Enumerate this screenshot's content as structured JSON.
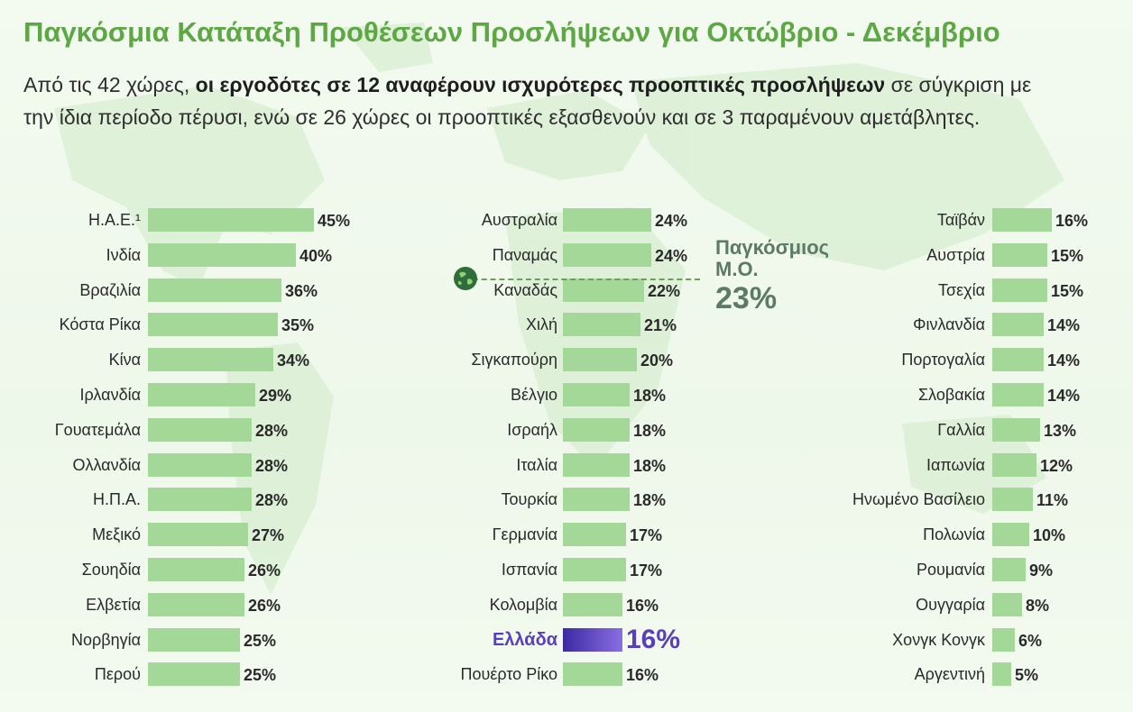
{
  "title": "Παγκόσμια Κατάταξη Προθέσεων Προσλήψεων για Οκτώβριο - Δεκέμβριο",
  "subtitle": {
    "part1": "Από τις 42 χώρες, ",
    "bold": "οι εργοδότες σε 12 αναφέρουν ισχυρότερες προοπτικές προσλήψεων",
    "part2": " σε σύγκριση με την ίδια περίοδο πέρυσι, ενώ σε 26 χώρες οι προοπτικές εξασθενούν και σε 3 παραμένουν αμετάβλητες."
  },
  "global_average": {
    "label": "Παγκόσμιος Μ.Ο.",
    "value": 23,
    "value_text": "23%"
  },
  "colors": {
    "title": "#5da845",
    "bar": "#a4d898",
    "highlight_start": "#3c2aa3",
    "highlight_end": "#8a6ee4",
    "highlight_text": "#5a3fbd",
    "average_text": "#5d7a66"
  },
  "chart_data": {
    "type": "bar",
    "orientation": "horizontal",
    "unit": "%",
    "highlight": "Ελλάδα",
    "average": 23,
    "columns": [
      [
        {
          "country": "Η.Α.Ε.¹",
          "value": 45
        },
        {
          "country": "Ινδία",
          "value": 40
        },
        {
          "country": "Βραζιλία",
          "value": 36
        },
        {
          "country": "Κόστα Ρίκα",
          "value": 35
        },
        {
          "country": "Κίνα",
          "value": 34
        },
        {
          "country": "Ιρλανδία",
          "value": 29
        },
        {
          "country": "Γουατεμάλα",
          "value": 28
        },
        {
          "country": "Ολλανδία",
          "value": 28
        },
        {
          "country": "Η.Π.Α.",
          "value": 28
        },
        {
          "country": "Μεξικό",
          "value": 27
        },
        {
          "country": "Σουηδία",
          "value": 26
        },
        {
          "country": "Ελβετία",
          "value": 26
        },
        {
          "country": "Νορβηγία",
          "value": 25
        },
        {
          "country": "Περού",
          "value": 25
        }
      ],
      [
        {
          "country": "Αυστραλία",
          "value": 24
        },
        {
          "country": "Παναμάς",
          "value": 24
        },
        {
          "country": "Καναδάς",
          "value": 22
        },
        {
          "country": "Χιλή",
          "value": 21
        },
        {
          "country": "Σιγκαπούρη",
          "value": 20
        },
        {
          "country": "Βέλγιο",
          "value": 18
        },
        {
          "country": "Ισραήλ",
          "value": 18
        },
        {
          "country": "Ιταλία",
          "value": 18
        },
        {
          "country": "Τουρκία",
          "value": 18
        },
        {
          "country": "Γερμανία",
          "value": 17
        },
        {
          "country": "Ισπανία",
          "value": 17
        },
        {
          "country": "Κολομβία",
          "value": 16
        },
        {
          "country": "Ελλάδα",
          "value": 16
        },
        {
          "country": "Πουέρτο Ρίκο",
          "value": 16
        }
      ],
      [
        {
          "country": "Ταϊβάν",
          "value": 16
        },
        {
          "country": "Αυστρία",
          "value": 15
        },
        {
          "country": "Τσεχία",
          "value": 15
        },
        {
          "country": "Φινλανδία",
          "value": 14
        },
        {
          "country": "Πορτογαλία",
          "value": 14
        },
        {
          "country": "Σλοβακία",
          "value": 14
        },
        {
          "country": "Γαλλία",
          "value": 13
        },
        {
          "country": "Ιαπωνία",
          "value": 12
        },
        {
          "country": "Ηνωμένο Βασίλειο",
          "value": 11
        },
        {
          "country": "Πολωνία",
          "value": 10
        },
        {
          "country": "Ρουμανία",
          "value": 9
        },
        {
          "country": "Ουγγαρία",
          "value": 8
        },
        {
          "country": "Χονγκ Κονγκ",
          "value": 6
        },
        {
          "country": "Αργεντινή",
          "value": 5
        }
      ]
    ]
  }
}
